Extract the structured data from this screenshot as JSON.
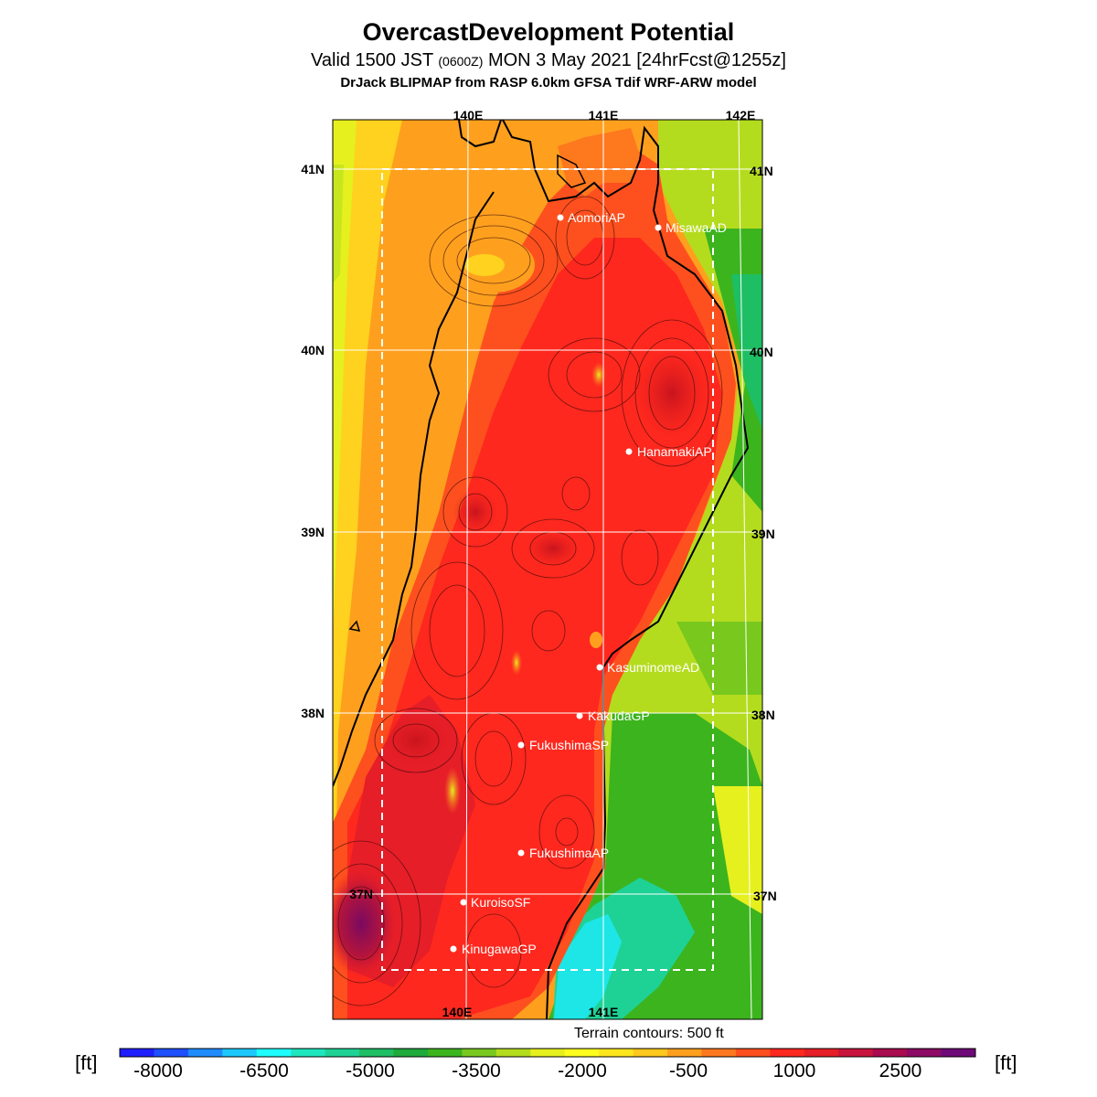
{
  "title": "OvercastDevelopment Potential",
  "subtitle": {
    "pre": "Valid 1500 JST ",
    "small": "(0600Z)",
    "mid": " MON 3 May 2021 ",
    "fcst": "[24hrFcst@1255z]"
  },
  "model_line": "DrJack BLIPMAP from RASP 6.0km GFSA Tdif WRF-ARW model",
  "longitudes": [
    "140E",
    "141E",
    "142E"
  ],
  "latitudes": [
    "41N",
    "40N",
    "39N",
    "38N",
    "37N"
  ],
  "stations": [
    {
      "name": "AomoriAP"
    },
    {
      "name": "MisawaAD"
    },
    {
      "name": "HanamakiAP"
    },
    {
      "name": "KasuminomeAD"
    },
    {
      "name": "KakudaGP"
    },
    {
      "name": "FukushimaSP"
    },
    {
      "name": "FukushimaAP"
    },
    {
      "name": "KuroisoSF"
    },
    {
      "name": "KinugawaGP"
    }
  ],
  "terrain_note": "Terrain contours: 500 ft",
  "units": {
    "left": "[ft]",
    "right": "[ft]"
  },
  "colorbar": {
    "labels": [
      "-8000",
      "-6500",
      "-5000",
      "-3500",
      "-2000",
      "-500",
      "1000",
      "2500"
    ],
    "colors": [
      "#1e1efe",
      "#1e50fe",
      "#1e8cfe",
      "#1ec8fe",
      "#1efefe",
      "#1ee6be",
      "#1ed296",
      "#1ebe64",
      "#1eaa3c",
      "#3cb41e",
      "#78c81e",
      "#b4dc1e",
      "#e6f01e",
      "#fefe1e",
      "#fee61e",
      "#fec81e",
      "#fea01e",
      "#fe781e",
      "#fe501e",
      "#fe281e",
      "#e61e28",
      "#c8143c",
      "#aa0a50",
      "#8c0a64",
      "#6e0a78"
    ]
  }
}
